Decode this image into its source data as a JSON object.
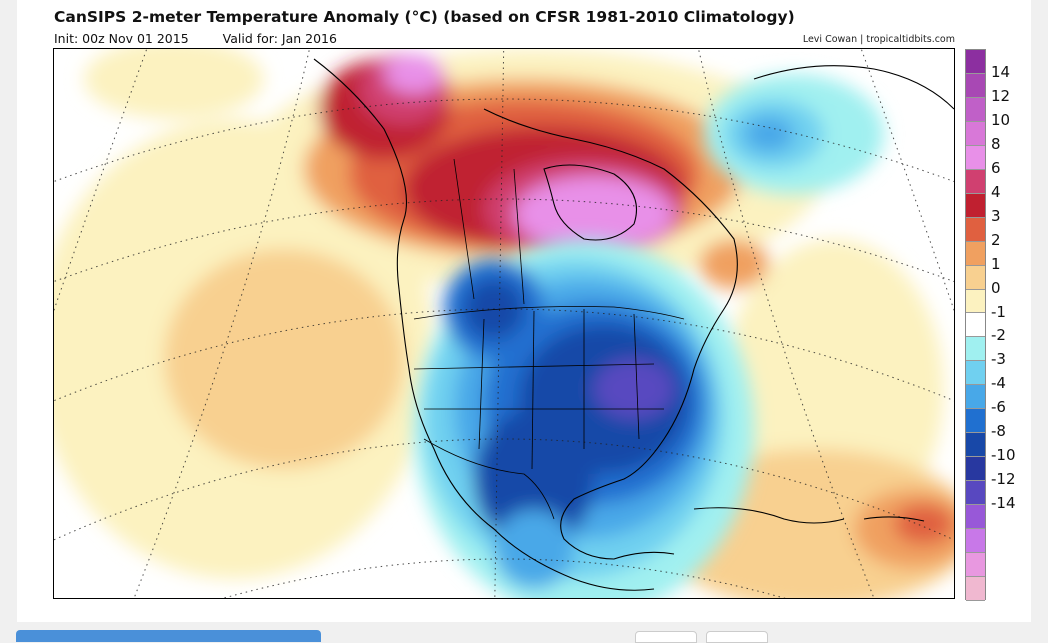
{
  "header": {
    "title": "CanSIPS 2-meter Temperature Anomaly (°C) (based on CFSR 1981-2010 Climatology)",
    "init": "Init: 00z Nov 01 2015",
    "valid": "Valid for: Jan 2016",
    "credit": "Levi Cowan | tropicaltidbits.com"
  },
  "legend": {
    "labels": [
      "14",
      "12",
      "10",
      "8",
      "6",
      "4",
      "3",
      "2",
      "1",
      "0",
      "-1",
      "-2",
      "-3",
      "-4",
      "-6",
      "-8",
      "-10",
      "-12",
      "-14"
    ],
    "colors": [
      "#8c2fa0",
      "#a848b4",
      "#c060c8",
      "#d878d8",
      "#e890e8",
      "#d04070",
      "#c02030",
      "#e06040",
      "#f0a060",
      "#f8d090",
      "#fcf2c0",
      "#ffffff",
      "#a0f0f0",
      "#70d0f0",
      "#48a8e8",
      "#2070d0",
      "#1848a8",
      "#2838a0",
      "#5848c0",
      "#9858d8",
      "#c878e8",
      "#e898e0",
      "#f0b8d0"
    ]
  },
  "map": {
    "region": "North America",
    "variable": "2-meter temperature anomaly",
    "units": "°C",
    "features": [
      {
        "area": "Canadian Arctic / Hudson Bay",
        "anomaly_c": 8
      },
      {
        "area": "Alaska / Yukon",
        "anomaly_c": 6
      },
      {
        "area": "Central & Eastern United States",
        "anomaly_c": -6
      },
      {
        "area": "Texas / Gulf Coast",
        "anomaly_c": -5
      },
      {
        "area": "Mexico Pacific coast",
        "anomaly_c": -2
      },
      {
        "area": "North Atlantic near Greenland",
        "anomaly_c": -2
      },
      {
        "area": "Northeast Pacific",
        "anomaly_c": 2
      },
      {
        "area": "Tropical Atlantic",
        "anomaly_c": 3
      }
    ]
  }
}
